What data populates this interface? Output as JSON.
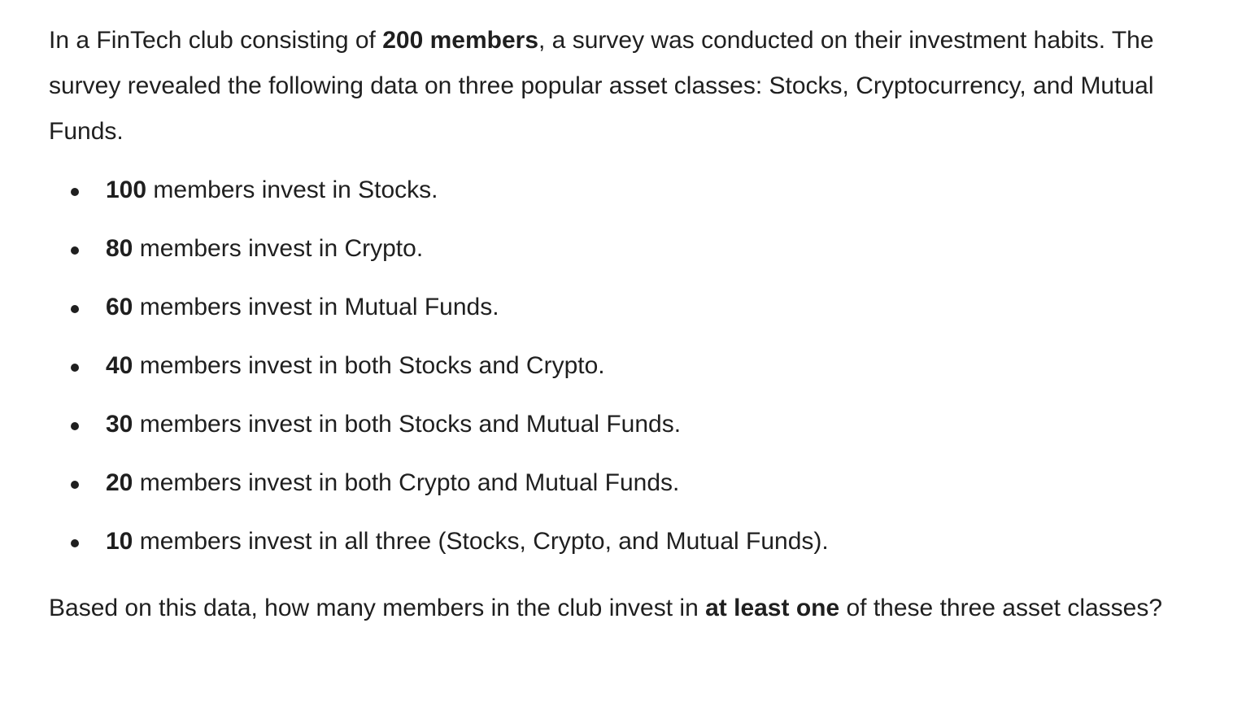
{
  "intro": {
    "part1": "In a FinTech club consisting of ",
    "bold": "200 members",
    "part2": ", a survey was conducted on their investment habits. The survey revealed the following data on three popular asset classes: Stocks, Cryptocurrency, and Mutual Funds."
  },
  "items": [
    {
      "num": "100",
      "text": " members invest in Stocks."
    },
    {
      "num": "80",
      "text": " members invest in Crypto."
    },
    {
      "num": "60",
      "text": " members invest in Mutual Funds."
    },
    {
      "num": "40",
      "text": " members invest in both Stocks and Crypto."
    },
    {
      "num": "30",
      "text": " members invest in both Stocks and Mutual Funds."
    },
    {
      "num": "20",
      "text": " members invest in both Crypto and Mutual Funds."
    },
    {
      "num": "10",
      "text": " members invest in all three (Stocks, Crypto, and Mutual Funds)."
    }
  ],
  "question": {
    "part1": "Based on this data, how many members in the club invest in ",
    "bold": "at least one",
    "part2": " of these three asset classes?"
  }
}
